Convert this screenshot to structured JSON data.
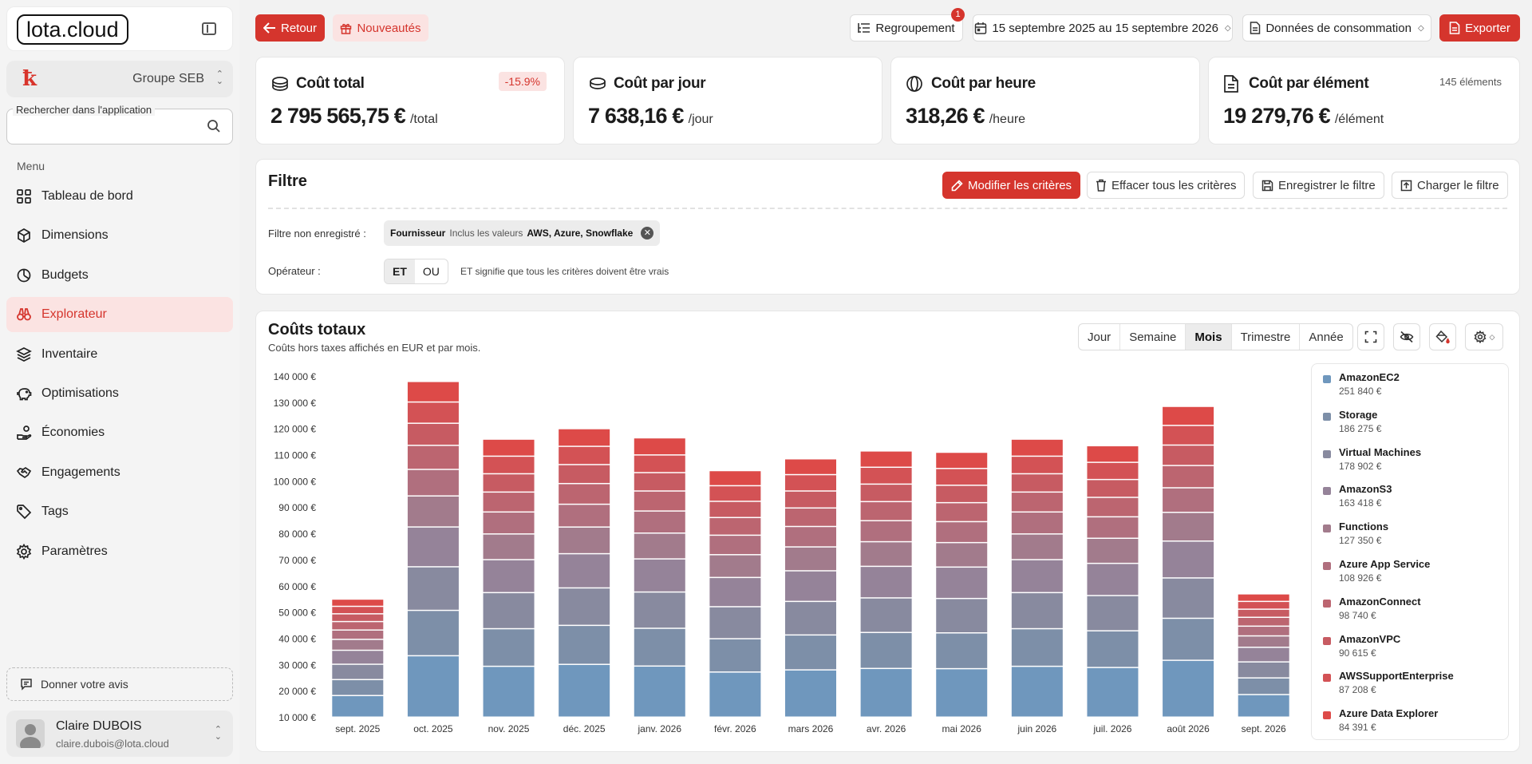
{
  "sidebar": {
    "logo": "lota.cloud",
    "org_name": "Groupe SEB",
    "search_label": "Rechercher dans l'application",
    "menu_title": "Menu",
    "items": [
      {
        "label": "Tableau de bord",
        "icon": "grid-icon"
      },
      {
        "label": "Dimensions",
        "icon": "cube-icon"
      },
      {
        "label": "Budgets",
        "icon": "pie-icon"
      },
      {
        "label": "Explorateur",
        "icon": "binoculars-icon",
        "active": true
      },
      {
        "label": "Inventaire",
        "icon": "layers-icon"
      },
      {
        "label": "Optimisations",
        "icon": "piggy-bank-icon"
      },
      {
        "label": "Économies",
        "icon": "hand-coins-icon"
      },
      {
        "label": "Engagements",
        "icon": "handshake-icon"
      },
      {
        "label": "Tags",
        "icon": "tag-icon"
      },
      {
        "label": "Paramètres",
        "icon": "gear-icon"
      }
    ],
    "feedback": "Donner votre avis",
    "user": {
      "name": "Claire DUBOIS",
      "email": "claire.dubois@lota.cloud"
    }
  },
  "topbar": {
    "back": "Retour",
    "news": "Nouveautés",
    "grouping": "Regroupement",
    "grouping_badge": "1",
    "date_range": "15 septembre 2025 au 15 septembre 2026",
    "data_source": "Données de consommation",
    "export": "Exporter"
  },
  "kpis": [
    {
      "title": "Coût total",
      "value": "2 795 565,75 €",
      "unit": "/total",
      "pill": "-15.9%",
      "icon": "coins-icon"
    },
    {
      "title": "Coût par jour",
      "value": "7 638,16 €",
      "unit": "/jour",
      "icon": "coin-stack-icon"
    },
    {
      "title": "Coût par heure",
      "value": "318,26 €",
      "unit": "/heure",
      "icon": "coin-icon"
    },
    {
      "title": "Coût par élément",
      "value": "19 279,76 €",
      "unit": "/élément",
      "note": "145 éléments",
      "icon": "file-icon"
    }
  ],
  "filter": {
    "title": "Filtre",
    "modify": "Modifier les critères",
    "clear": "Effacer tous les critères",
    "save": "Enregistrer le filtre",
    "load": "Charger le filtre",
    "unsaved_label": "Filtre non enregistré :",
    "chip_field": "Fournisseur",
    "chip_op": "Inclus les valeurs",
    "chip_values": "AWS, Azure, Snowflake",
    "operator_label": "Opérateur :",
    "op_and": "ET",
    "op_or": "OU",
    "op_note": "ET signifie que tous les critères doivent être vrais"
  },
  "chart_panel": {
    "title": "Coûts totaux",
    "subtitle": "Coûts hors taxes affichés en EUR et par mois.",
    "periods": [
      "Jour",
      "Semaine",
      "Mois",
      "Trimestre",
      "Année"
    ],
    "active_period": "Mois"
  },
  "chart_data": {
    "type": "bar",
    "stacked": true,
    "categories": [
      "sept. 2025",
      "oct. 2025",
      "nov. 2025",
      "déc. 2025",
      "janv. 2026",
      "févr. 2026",
      "mars 2026",
      "avr. 2026",
      "mai 2026",
      "juin 2026",
      "juil. 2026",
      "août 2026",
      "sept. 2026"
    ],
    "totals": [
      55000,
      138000,
      116000,
      120000,
      116500,
      104000,
      108500,
      111500,
      111000,
      116000,
      113500,
      128500,
      57000
    ],
    "ylim": [
      10000,
      140000
    ],
    "yticks": [
      10000,
      20000,
      30000,
      40000,
      50000,
      60000,
      70000,
      80000,
      90000,
      100000,
      110000,
      120000,
      130000,
      140000
    ],
    "ytick_labels": [
      "10 000 €",
      "20 000 €",
      "30 000 €",
      "40 000 €",
      "50 000 €",
      "60 000 €",
      "70 000 €",
      "80 000 €",
      "90 000 €",
      "100 000 €",
      "110 000 €",
      "120 000 €",
      "130 000 €",
      "140 000 €"
    ],
    "legend": [
      {
        "name": "AmazonEC2",
        "value": "251 840 €",
        "color": "#6f97bd"
      },
      {
        "name": "Storage",
        "value": "186 275 €",
        "color": "#7d8fa8"
      },
      {
        "name": "Virtual Machines",
        "value": "178 902 €",
        "color": "#888a9f"
      },
      {
        "name": "AmazonS3",
        "value": "163 418 €",
        "color": "#958399"
      },
      {
        "name": "Functions",
        "value": "127 350 €",
        "color": "#a27b8c"
      },
      {
        "name": "Azure App Service",
        "value": "108 926 €",
        "color": "#b06f7e"
      },
      {
        "name": "AmazonConnect",
        "value": "98 740 €",
        "color": "#bc6570"
      },
      {
        "name": "AmazonVPC",
        "value": "90 615 €",
        "color": "#c75b62"
      },
      {
        "name": "AWSSupportEnterprise",
        "value": "87 208 €",
        "color": "#d35255"
      },
      {
        "name": "Azure Data Explorer",
        "value": "84 391 €",
        "color": "#dd4a48"
      }
    ]
  }
}
